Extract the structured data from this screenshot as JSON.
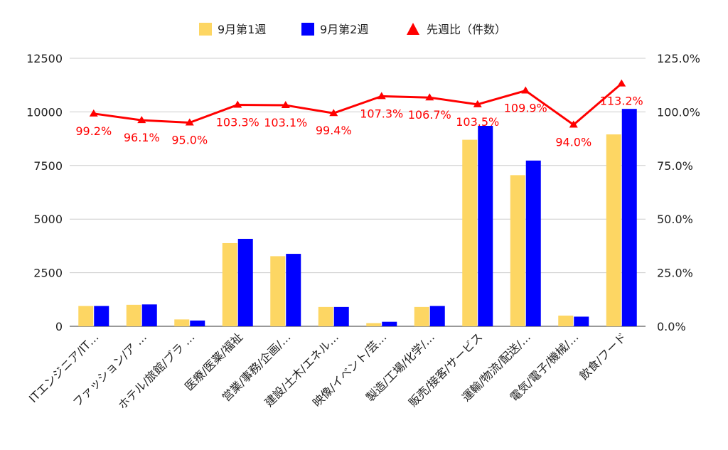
{
  "chart_data": {
    "type": "bar",
    "categories": [
      "ITエンジニア/IT…",
      "ファッション/ア …",
      "ホテル/旅館/ブラ …",
      "医療/医薬/福祉",
      "営業/事務/企画/…",
      "建設/土木/エネル…",
      "映像/イベント/芸…",
      "製造/工場/化学/…",
      "販売/接客/サービス",
      "運輸/物流/配送/…",
      "電気/電子/機械/…",
      "飲食/フード"
    ],
    "series": [
      {
        "name": "9月第1週",
        "type": "bar",
        "axis": "left",
        "color": "#fdd663",
        "values": [
          950,
          1000,
          320,
          3880,
          3270,
          900,
          150,
          900,
          8700,
          7050,
          500,
          8950
        ]
      },
      {
        "name": "9月第2週",
        "type": "bar",
        "axis": "left",
        "color": "#0000ff",
        "values": [
          950,
          1020,
          270,
          4080,
          3380,
          900,
          210,
          950,
          9350,
          7730,
          450,
          10140
        ]
      },
      {
        "name": "先週比（件数）",
        "type": "line",
        "axis": "right",
        "color": "#ff0000",
        "values": [
          99.2,
          96.1,
          95.0,
          103.3,
          103.1,
          99.4,
          107.3,
          106.7,
          103.5,
          109.9,
          94.0,
          113.2
        ],
        "labels": [
          "99.2%",
          "96.1%",
          "95.0%",
          "103.3%",
          "103.1%",
          "99.4%",
          "107.3%",
          "106.7%",
          "103.5%",
          "109.9%",
          "94.0%",
          "113.2%"
        ]
      }
    ],
    "y_left": {
      "min": 0,
      "max": 12500,
      "ticks": [
        "0",
        "2500",
        "5000",
        "7500",
        "10000",
        "12500"
      ]
    },
    "y_right": {
      "min": 0,
      "max": 125,
      "ticks": [
        "0.0%",
        "25.0%",
        "50.0%",
        "75.0%",
        "100.0%",
        "125.0%"
      ]
    },
    "grid": true,
    "legend_position": "top"
  }
}
